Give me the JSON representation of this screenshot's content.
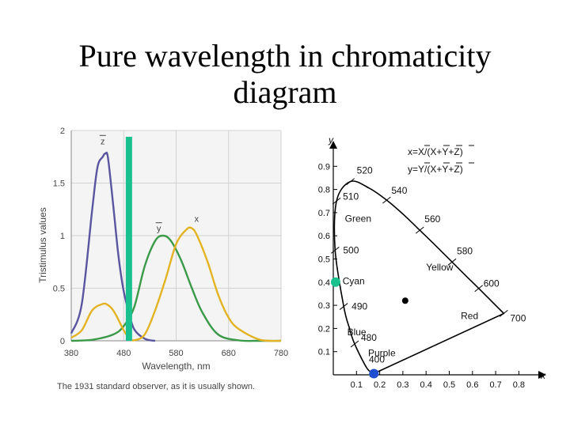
{
  "slide": {
    "title_line1": "Pure wavelength in chromaticity",
    "title_line2": "diagram"
  },
  "chart_data": [
    {
      "type": "line",
      "xlabel": "Wavelength, nm",
      "ylabel": "Tristimulus values",
      "caption": "The 1931 standard observer, as it is usually shown.",
      "xlim": [
        380,
        780
      ],
      "ylim": [
        0,
        2
      ],
      "x_ticks": [
        380,
        480,
        580,
        680,
        780
      ],
      "y_ticks": [
        "0",
        "0.5",
        "1",
        "1.5",
        "2"
      ],
      "series": [
        {
          "name": "z",
          "color": "#5a55a0",
          "x": [
            380,
            400,
            420,
            430,
            440,
            445,
            450,
            460,
            470,
            480,
            490,
            500,
            520,
            540
          ],
          "y": [
            0.07,
            0.35,
            1.25,
            1.65,
            1.75,
            1.78,
            1.74,
            1.29,
            0.81,
            0.47,
            0.27,
            0.11,
            0.02,
            0.0
          ]
        },
        {
          "name": "y",
          "color": "#3a9a48",
          "x": [
            380,
            420,
            460,
            480,
            500,
            520,
            540,
            555,
            570,
            590,
            610,
            630,
            660,
            700,
            740,
            780
          ],
          "y": [
            0.0,
            0.01,
            0.06,
            0.14,
            0.32,
            0.71,
            0.95,
            1.0,
            0.95,
            0.76,
            0.5,
            0.27,
            0.06,
            0.004,
            0.0,
            0.0
          ]
        },
        {
          "name": "x",
          "color": "#e3b323",
          "x": [
            380,
            400,
            420,
            440,
            450,
            460,
            470,
            480,
            490,
            500,
            520,
            540,
            560,
            580,
            600,
            610,
            620,
            640,
            660,
            680,
            700,
            740,
            780
          ],
          "y": [
            0.03,
            0.1,
            0.29,
            0.35,
            0.34,
            0.29,
            0.2,
            0.1,
            0.03,
            0.005,
            0.06,
            0.29,
            0.59,
            0.92,
            1.06,
            1.07,
            1.0,
            0.75,
            0.44,
            0.22,
            0.11,
            0.01,
            0.0
          ]
        }
      ],
      "marker": {
        "wavelength": 490,
        "color": "#1ac08e"
      }
    },
    {
      "type": "line",
      "xlabel": "x",
      "ylabel": "y",
      "xlim": [
        0,
        0.9
      ],
      "ylim": [
        0,
        0.9
      ],
      "x_ticks": [
        "0.1",
        "0.2",
        "0.3",
        "0.4",
        "0.5",
        "0.6",
        "0.7",
        "0.8"
      ],
      "y_ticks": [
        "0.1",
        "0.2",
        "0.3",
        "0.4",
        "0.5",
        "0.6",
        "0.7",
        "0.8",
        "0.9"
      ],
      "formula_x": "x=X/(X+Y+Z)",
      "formula_y": "y=Y/(X+Y+Z)",
      "locus": [
        [
          0.174,
          0.005
        ],
        [
          0.144,
          0.03
        ],
        [
          0.092,
          0.133
        ],
        [
          0.07,
          0.2
        ],
        [
          0.045,
          0.295
        ],
        [
          0.008,
          0.538
        ],
        [
          0.014,
          0.75
        ],
        [
          0.074,
          0.834
        ],
        [
          0.154,
          0.806
        ],
        [
          0.23,
          0.754
        ],
        [
          0.302,
          0.692
        ],
        [
          0.373,
          0.624
        ],
        [
          0.444,
          0.555
        ],
        [
          0.512,
          0.487
        ],
        [
          0.575,
          0.424
        ],
        [
          0.627,
          0.373
        ],
        [
          0.666,
          0.334
        ],
        [
          0.735,
          0.265
        ]
      ],
      "wavelength_labels": [
        {
          "text": "520",
          "x": 0.074,
          "y": 0.834
        },
        {
          "text": "540",
          "x": 0.23,
          "y": 0.754
        },
        {
          "text": "510",
          "x": 0.014,
          "y": 0.75
        },
        {
          "text": "560",
          "x": 0.373,
          "y": 0.624
        },
        {
          "text": "500",
          "x": 0.008,
          "y": 0.538
        },
        {
          "text": "580",
          "x": 0.512,
          "y": 0.487
        },
        {
          "text": "600",
          "x": 0.627,
          "y": 0.373
        },
        {
          "text": "490",
          "x": 0.045,
          "y": 0.295
        },
        {
          "text": "700",
          "x": 0.735,
          "y": 0.265
        },
        {
          "text": "480",
          "x": 0.092,
          "y": 0.133
        },
        {
          "text": "400",
          "x": 0.174,
          "y": 0.005
        }
      ],
      "region_labels": [
        {
          "text": "Green",
          "x": 0.05,
          "y": 0.66
        },
        {
          "text": "Yellow",
          "x": 0.4,
          "y": 0.45
        },
        {
          "text": "Cyan",
          "x": 0.04,
          "y": 0.39
        },
        {
          "text": "Red",
          "x": 0.55,
          "y": 0.24
        },
        {
          "text": "Blue",
          "x": 0.06,
          "y": 0.17
        },
        {
          "text": "Purple",
          "x": 0.15,
          "y": 0.08
        }
      ],
      "white_point": {
        "x": 0.31,
        "y": 0.32,
        "color": "#000000"
      },
      "highlight_points": [
        {
          "name": "cyan",
          "x": 0.01,
          "y": 0.4,
          "color": "#1ac08e"
        },
        {
          "name": "violet",
          "x": 0.175,
          "y": 0.005,
          "color": "#1f4fd0"
        }
      ]
    }
  ]
}
